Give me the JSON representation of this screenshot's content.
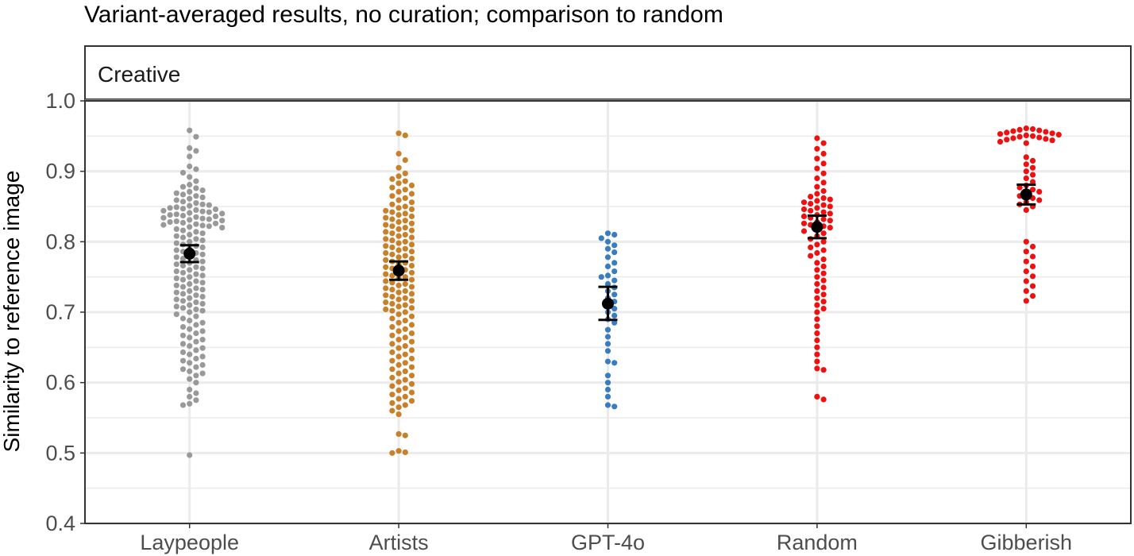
{
  "chart_data": {
    "type": "scatter",
    "title": "Variant-averaged results, no curation; comparison to random",
    "facet_label": "Creative",
    "xlabel": "",
    "ylabel": "Similarity to reference image",
    "ylim": [
      0.4,
      1.0
    ],
    "y_ticks": [
      "0.4",
      "0.5",
      "0.6",
      "0.7",
      "0.8",
      "0.9",
      "1.0"
    ],
    "grid": true,
    "categories": [
      "Laypeople",
      "Artists",
      "GPT-4o",
      "Random",
      "Gibberish"
    ],
    "colors": {
      "Laypeople": "#999999",
      "Artists": "#c9802a",
      "GPT-4o": "#3a7dbf",
      "Random": "#ee1111",
      "Gibberish": "#ee1111",
      "summary": "#000000"
    },
    "series": [
      {
        "category": "Laypeople",
        "mean": 0.783,
        "ci": [
          0.771,
          0.795
        ],
        "values": [
          0.958,
          0.949,
          0.933,
          0.929,
          0.921,
          0.907,
          0.903,
          0.898,
          0.892,
          0.886,
          0.881,
          0.878,
          0.876,
          0.873,
          0.871,
          0.869,
          0.867,
          0.865,
          0.863,
          0.861,
          0.859,
          0.857,
          0.855,
          0.853,
          0.852,
          0.851,
          0.849,
          0.848,
          0.847,
          0.846,
          0.845,
          0.844,
          0.843,
          0.842,
          0.841,
          0.84,
          0.839,
          0.838,
          0.837,
          0.836,
          0.835,
          0.834,
          0.833,
          0.832,
          0.831,
          0.83,
          0.829,
          0.828,
          0.827,
          0.826,
          0.825,
          0.824,
          0.823,
          0.822,
          0.821,
          0.82,
          0.818,
          0.816,
          0.814,
          0.812,
          0.81,
          0.808,
          0.806,
          0.804,
          0.802,
          0.8,
          0.798,
          0.796,
          0.794,
          0.792,
          0.79,
          0.788,
          0.786,
          0.784,
          0.782,
          0.78,
          0.778,
          0.776,
          0.774,
          0.772,
          0.77,
          0.768,
          0.766,
          0.764,
          0.762,
          0.76,
          0.758,
          0.756,
          0.754,
          0.752,
          0.75,
          0.748,
          0.746,
          0.744,
          0.742,
          0.74,
          0.738,
          0.736,
          0.734,
          0.732,
          0.73,
          0.728,
          0.726,
          0.724,
          0.722,
          0.72,
          0.718,
          0.716,
          0.714,
          0.712,
          0.71,
          0.708,
          0.706,
          0.704,
          0.702,
          0.7,
          0.697,
          0.694,
          0.691,
          0.688,
          0.685,
          0.682,
          0.679,
          0.676,
          0.673,
          0.67,
          0.667,
          0.664,
          0.661,
          0.658,
          0.655,
          0.652,
          0.649,
          0.646,
          0.643,
          0.64,
          0.637,
          0.634,
          0.631,
          0.628,
          0.625,
          0.622,
          0.619,
          0.616,
          0.613,
          0.61,
          0.605,
          0.6,
          0.59,
          0.585,
          0.58,
          0.575,
          0.57,
          0.568,
          0.497
        ]
      },
      {
        "category": "Artists",
        "mean": 0.759,
        "ci": [
          0.746,
          0.772
        ],
        "values": [
          0.954,
          0.951,
          0.925,
          0.916,
          0.905,
          0.897,
          0.893,
          0.889,
          0.886,
          0.883,
          0.88,
          0.877,
          0.874,
          0.871,
          0.868,
          0.865,
          0.862,
          0.859,
          0.856,
          0.853,
          0.85,
          0.848,
          0.846,
          0.844,
          0.842,
          0.84,
          0.838,
          0.836,
          0.834,
          0.832,
          0.83,
          0.828,
          0.826,
          0.824,
          0.822,
          0.82,
          0.818,
          0.816,
          0.814,
          0.812,
          0.81,
          0.808,
          0.806,
          0.804,
          0.802,
          0.8,
          0.798,
          0.796,
          0.794,
          0.792,
          0.79,
          0.788,
          0.786,
          0.784,
          0.782,
          0.78,
          0.778,
          0.776,
          0.774,
          0.772,
          0.77,
          0.768,
          0.766,
          0.764,
          0.762,
          0.76,
          0.758,
          0.756,
          0.754,
          0.752,
          0.75,
          0.748,
          0.746,
          0.744,
          0.742,
          0.74,
          0.738,
          0.736,
          0.734,
          0.732,
          0.73,
          0.728,
          0.726,
          0.724,
          0.722,
          0.72,
          0.718,
          0.716,
          0.714,
          0.712,
          0.71,
          0.708,
          0.706,
          0.704,
          0.702,
          0.7,
          0.697,
          0.694,
          0.691,
          0.688,
          0.685,
          0.682,
          0.679,
          0.676,
          0.673,
          0.67,
          0.667,
          0.664,
          0.661,
          0.658,
          0.655,
          0.652,
          0.649,
          0.646,
          0.643,
          0.64,
          0.637,
          0.634,
          0.631,
          0.628,
          0.625,
          0.622,
          0.619,
          0.616,
          0.613,
          0.61,
          0.607,
          0.604,
          0.601,
          0.598,
          0.595,
          0.592,
          0.589,
          0.586,
          0.583,
          0.58,
          0.577,
          0.574,
          0.571,
          0.568,
          0.565,
          0.56,
          0.555,
          0.527,
          0.525,
          0.503,
          0.501,
          0.5
        ]
      },
      {
        "category": "GPT-4o",
        "mean": 0.712,
        "ci": [
          0.689,
          0.736
        ],
        "values": [
          0.812,
          0.81,
          0.805,
          0.8,
          0.795,
          0.79,
          0.785,
          0.778,
          0.77,
          0.765,
          0.758,
          0.752,
          0.75,
          0.745,
          0.74,
          0.735,
          0.73,
          0.725,
          0.72,
          0.715,
          0.71,
          0.705,
          0.7,
          0.695,
          0.69,
          0.685,
          0.675,
          0.665,
          0.655,
          0.645,
          0.63,
          0.628,
          0.61,
          0.6,
          0.59,
          0.58,
          0.568,
          0.566
        ]
      },
      {
        "category": "Random",
        "mean": 0.821,
        "ci": [
          0.805,
          0.837
        ],
        "values": [
          0.947,
          0.94,
          0.932,
          0.925,
          0.918,
          0.911,
          0.904,
          0.897,
          0.89,
          0.884,
          0.878,
          0.872,
          0.868,
          0.864,
          0.862,
          0.86,
          0.858,
          0.856,
          0.854,
          0.852,
          0.85,
          0.848,
          0.846,
          0.844,
          0.842,
          0.84,
          0.838,
          0.836,
          0.834,
          0.832,
          0.83,
          0.828,
          0.826,
          0.824,
          0.822,
          0.82,
          0.818,
          0.815,
          0.812,
          0.808,
          0.804,
          0.8,
          0.796,
          0.792,
          0.788,
          0.784,
          0.78,
          0.775,
          0.77,
          0.765,
          0.76,
          0.755,
          0.75,
          0.745,
          0.74,
          0.735,
          0.73,
          0.725,
          0.72,
          0.715,
          0.71,
          0.705,
          0.7,
          0.69,
          0.68,
          0.67,
          0.66,
          0.65,
          0.64,
          0.63,
          0.62,
          0.618,
          0.58,
          0.576
        ]
      },
      {
        "category": "Gibberish",
        "mean": 0.867,
        "ci": [
          0.853,
          0.881
        ],
        "values": [
          0.961,
          0.96,
          0.959,
          0.958,
          0.957,
          0.956,
          0.955,
          0.954,
          0.953,
          0.952,
          0.951,
          0.95,
          0.949,
          0.948,
          0.947,
          0.946,
          0.945,
          0.944,
          0.942,
          0.94,
          0.92,
          0.915,
          0.91,
          0.905,
          0.9,
          0.895,
          0.89,
          0.885,
          0.88,
          0.877,
          0.874,
          0.871,
          0.868,
          0.865,
          0.862,
          0.859,
          0.856,
          0.853,
          0.85,
          0.845,
          0.8,
          0.793,
          0.786,
          0.779,
          0.772,
          0.765,
          0.758,
          0.751,
          0.744,
          0.737,
          0.73,
          0.723,
          0.716
        ]
      }
    ]
  }
}
